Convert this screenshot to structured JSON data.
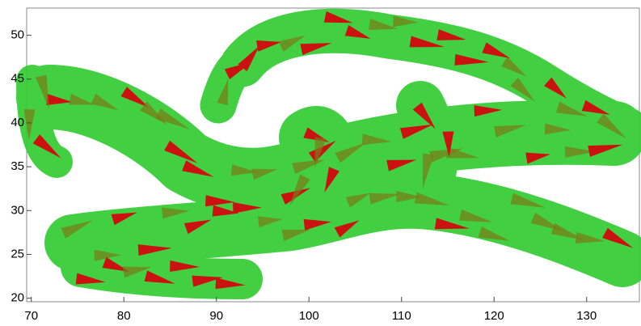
{
  "chart_data": {
    "type": "cone-plot",
    "xlim": [
      69.5,
      135.7
    ],
    "xticks": [
      70,
      80,
      90,
      100,
      110,
      120,
      130
    ],
    "ylim": [
      19.6,
      53.1
    ],
    "yticks": [
      20,
      25,
      30,
      35,
      40,
      45,
      50
    ],
    "surface_color": "#33cc33",
    "cone_colors": [
      "#cc1111",
      "#7a7a18"
    ]
  }
}
